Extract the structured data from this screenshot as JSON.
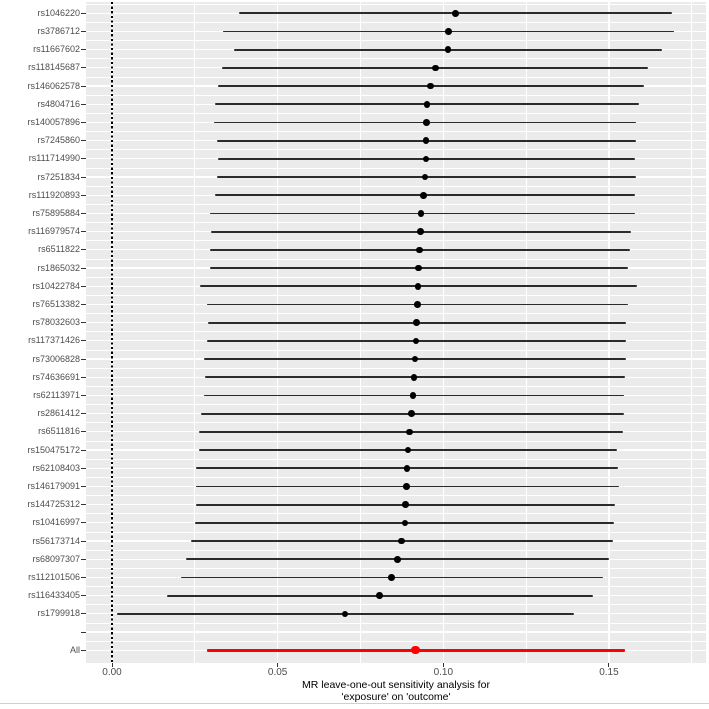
{
  "chart_data": {
    "type": "forest",
    "title": "MR leave-one-out sensitivity analysis for 'exposure' on 'outcome'",
    "xlabel_lines": [
      "MR leave-one-out sensitivity analysis for",
      "'exposure' on 'outcome'"
    ],
    "x_ticks": [
      0.0,
      0.05,
      0.1,
      0.15
    ],
    "x_tick_labels": [
      "0.00",
      "0.05",
      "0.10",
      "0.15"
    ],
    "x_minor_ticks": [
      0.025,
      0.075,
      0.125,
      0.175
    ],
    "xlim": [
      -0.008,
      0.179
    ],
    "zero_reference_line": 0,
    "grid": true,
    "legend": false,
    "colors": {
      "panel_bg": "#EBEBEB",
      "grid": "#FFFFFF",
      "snp_line": "#2B2B2B",
      "snp_dot": "#000000",
      "all_accent": "#FF0000",
      "axis_text": "#4D4D4D",
      "tick_mark": "#333333"
    },
    "rows": [
      {
        "label": "rs1046220",
        "b": 0.1036,
        "lo": 0.0384,
        "hi": 0.169,
        "type": "snp"
      },
      {
        "label": "rs3786712",
        "b": 0.1016,
        "lo": 0.0334,
        "hi": 0.1697,
        "type": "snp"
      },
      {
        "label": "rs11667602",
        "b": 0.1014,
        "lo": 0.0367,
        "hi": 0.1661,
        "type": "snp"
      },
      {
        "label": "rs118145687",
        "b": 0.0976,
        "lo": 0.0331,
        "hi": 0.1619,
        "type": "snp"
      },
      {
        "label": "rs146062578",
        "b": 0.0961,
        "lo": 0.0319,
        "hi": 0.1607,
        "type": "snp"
      },
      {
        "label": "rs4804716",
        "b": 0.0951,
        "lo": 0.0312,
        "hi": 0.1592,
        "type": "snp"
      },
      {
        "label": "rs140057896",
        "b": 0.0949,
        "lo": 0.0309,
        "hi": 0.1582,
        "type": "snp"
      },
      {
        "label": "rs7245860",
        "b": 0.0948,
        "lo": 0.0316,
        "hi": 0.1582,
        "type": "snp"
      },
      {
        "label": "rs111714990",
        "b": 0.0948,
        "lo": 0.032,
        "hi": 0.1579,
        "type": "snp"
      },
      {
        "label": "rs7251834",
        "b": 0.0945,
        "lo": 0.0318,
        "hi": 0.1582,
        "type": "snp"
      },
      {
        "label": "rs111920893",
        "b": 0.0941,
        "lo": 0.0312,
        "hi": 0.158,
        "type": "snp"
      },
      {
        "label": "rs75895884",
        "b": 0.0933,
        "lo": 0.0296,
        "hi": 0.1579,
        "type": "snp"
      },
      {
        "label": "rs116979574",
        "b": 0.0931,
        "lo": 0.0298,
        "hi": 0.1566,
        "type": "snp"
      },
      {
        "label": "rs6511822",
        "b": 0.0928,
        "lo": 0.0295,
        "hi": 0.1564,
        "type": "snp"
      },
      {
        "label": "rs1865032",
        "b": 0.0926,
        "lo": 0.0295,
        "hi": 0.1558,
        "type": "snp"
      },
      {
        "label": "rs10422784",
        "b": 0.0924,
        "lo": 0.0266,
        "hi": 0.1584,
        "type": "snp"
      },
      {
        "label": "rs76513382",
        "b": 0.0922,
        "lo": 0.0286,
        "hi": 0.1556,
        "type": "snp"
      },
      {
        "label": "rs78032603",
        "b": 0.092,
        "lo": 0.029,
        "hi": 0.1552,
        "type": "snp"
      },
      {
        "label": "rs117371426",
        "b": 0.0918,
        "lo": 0.0286,
        "hi": 0.1552,
        "type": "snp"
      },
      {
        "label": "rs73006828",
        "b": 0.0915,
        "lo": 0.0278,
        "hi": 0.1552,
        "type": "snp"
      },
      {
        "label": "rs74636691",
        "b": 0.0912,
        "lo": 0.028,
        "hi": 0.1549,
        "type": "snp"
      },
      {
        "label": "rs62113971",
        "b": 0.0909,
        "lo": 0.0279,
        "hi": 0.1544,
        "type": "snp"
      },
      {
        "label": "rs2861412",
        "b": 0.0904,
        "lo": 0.0268,
        "hi": 0.1544,
        "type": "snp"
      },
      {
        "label": "rs6511816",
        "b": 0.0898,
        "lo": 0.0264,
        "hi": 0.1543,
        "type": "snp"
      },
      {
        "label": "rs150475172",
        "b": 0.0894,
        "lo": 0.0262,
        "hi": 0.1525,
        "type": "snp"
      },
      {
        "label": "rs62108403",
        "b": 0.0891,
        "lo": 0.0254,
        "hi": 0.1528,
        "type": "snp"
      },
      {
        "label": "rs146179091",
        "b": 0.0889,
        "lo": 0.0253,
        "hi": 0.1529,
        "type": "snp"
      },
      {
        "label": "rs144725312",
        "b": 0.0886,
        "lo": 0.0254,
        "hi": 0.1517,
        "type": "snp"
      },
      {
        "label": "rs10416997",
        "b": 0.0884,
        "lo": 0.0251,
        "hi": 0.1515,
        "type": "snp"
      },
      {
        "label": "rs56173714",
        "b": 0.0874,
        "lo": 0.0238,
        "hi": 0.1511,
        "type": "snp"
      },
      {
        "label": "rs68097307",
        "b": 0.0861,
        "lo": 0.0223,
        "hi": 0.1501,
        "type": "snp"
      },
      {
        "label": "rs112101506",
        "b": 0.0844,
        "lo": 0.0207,
        "hi": 0.1483,
        "type": "snp"
      },
      {
        "label": "rs116433405",
        "b": 0.0807,
        "lo": 0.0165,
        "hi": 0.1451,
        "type": "snp"
      },
      {
        "label": "rs1799918",
        "b": 0.0703,
        "lo": 0.0014,
        "hi": 0.1395,
        "type": "snp"
      },
      {
        "label": "",
        "type": "spacer"
      },
      {
        "label": "All",
        "b": 0.0916,
        "lo": 0.0286,
        "hi": 0.1547,
        "type": "all"
      }
    ]
  }
}
